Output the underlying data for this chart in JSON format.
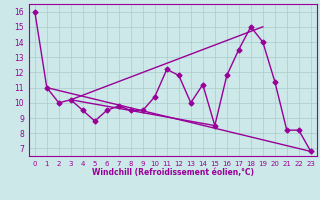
{
  "xlabel": "Windchill (Refroidissement éolien,°C)",
  "ylabel": "",
  "background_color": "#cce8e8",
  "line_color": "#990099",
  "grid_color": "#aacccc",
  "xlim": [
    -0.5,
    23.5
  ],
  "ylim": [
    6.5,
    16.5
  ],
  "yticks": [
    7,
    8,
    9,
    10,
    11,
    12,
    13,
    14,
    15,
    16
  ],
  "xticks": [
    0,
    1,
    2,
    3,
    4,
    5,
    6,
    7,
    8,
    9,
    10,
    11,
    12,
    13,
    14,
    15,
    16,
    17,
    18,
    19,
    20,
    21,
    22,
    23
  ],
  "main_x": [
    0,
    1,
    2,
    3,
    4,
    5,
    6,
    7,
    8,
    9,
    10,
    11,
    12,
    13,
    14,
    15,
    16,
    17,
    18,
    19,
    20,
    21,
    22,
    23
  ],
  "main_y": [
    16,
    11,
    10,
    10.2,
    9.5,
    8.8,
    9.5,
    9.8,
    9.5,
    9.5,
    10.4,
    12.2,
    11.8,
    10,
    11.2,
    8.5,
    11.8,
    13.5,
    15,
    14,
    11.4,
    8.2,
    8.2,
    6.8
  ],
  "line2_x": [
    1,
    23
  ],
  "line2_y": [
    11,
    6.8
  ],
  "line3_x": [
    3,
    19
  ],
  "line3_y": [
    10.2,
    15
  ],
  "line4_x": [
    3,
    15
  ],
  "line4_y": [
    10.2,
    8.5
  ],
  "marker": "D",
  "markersize": 2.5,
  "linewidth": 1.0
}
